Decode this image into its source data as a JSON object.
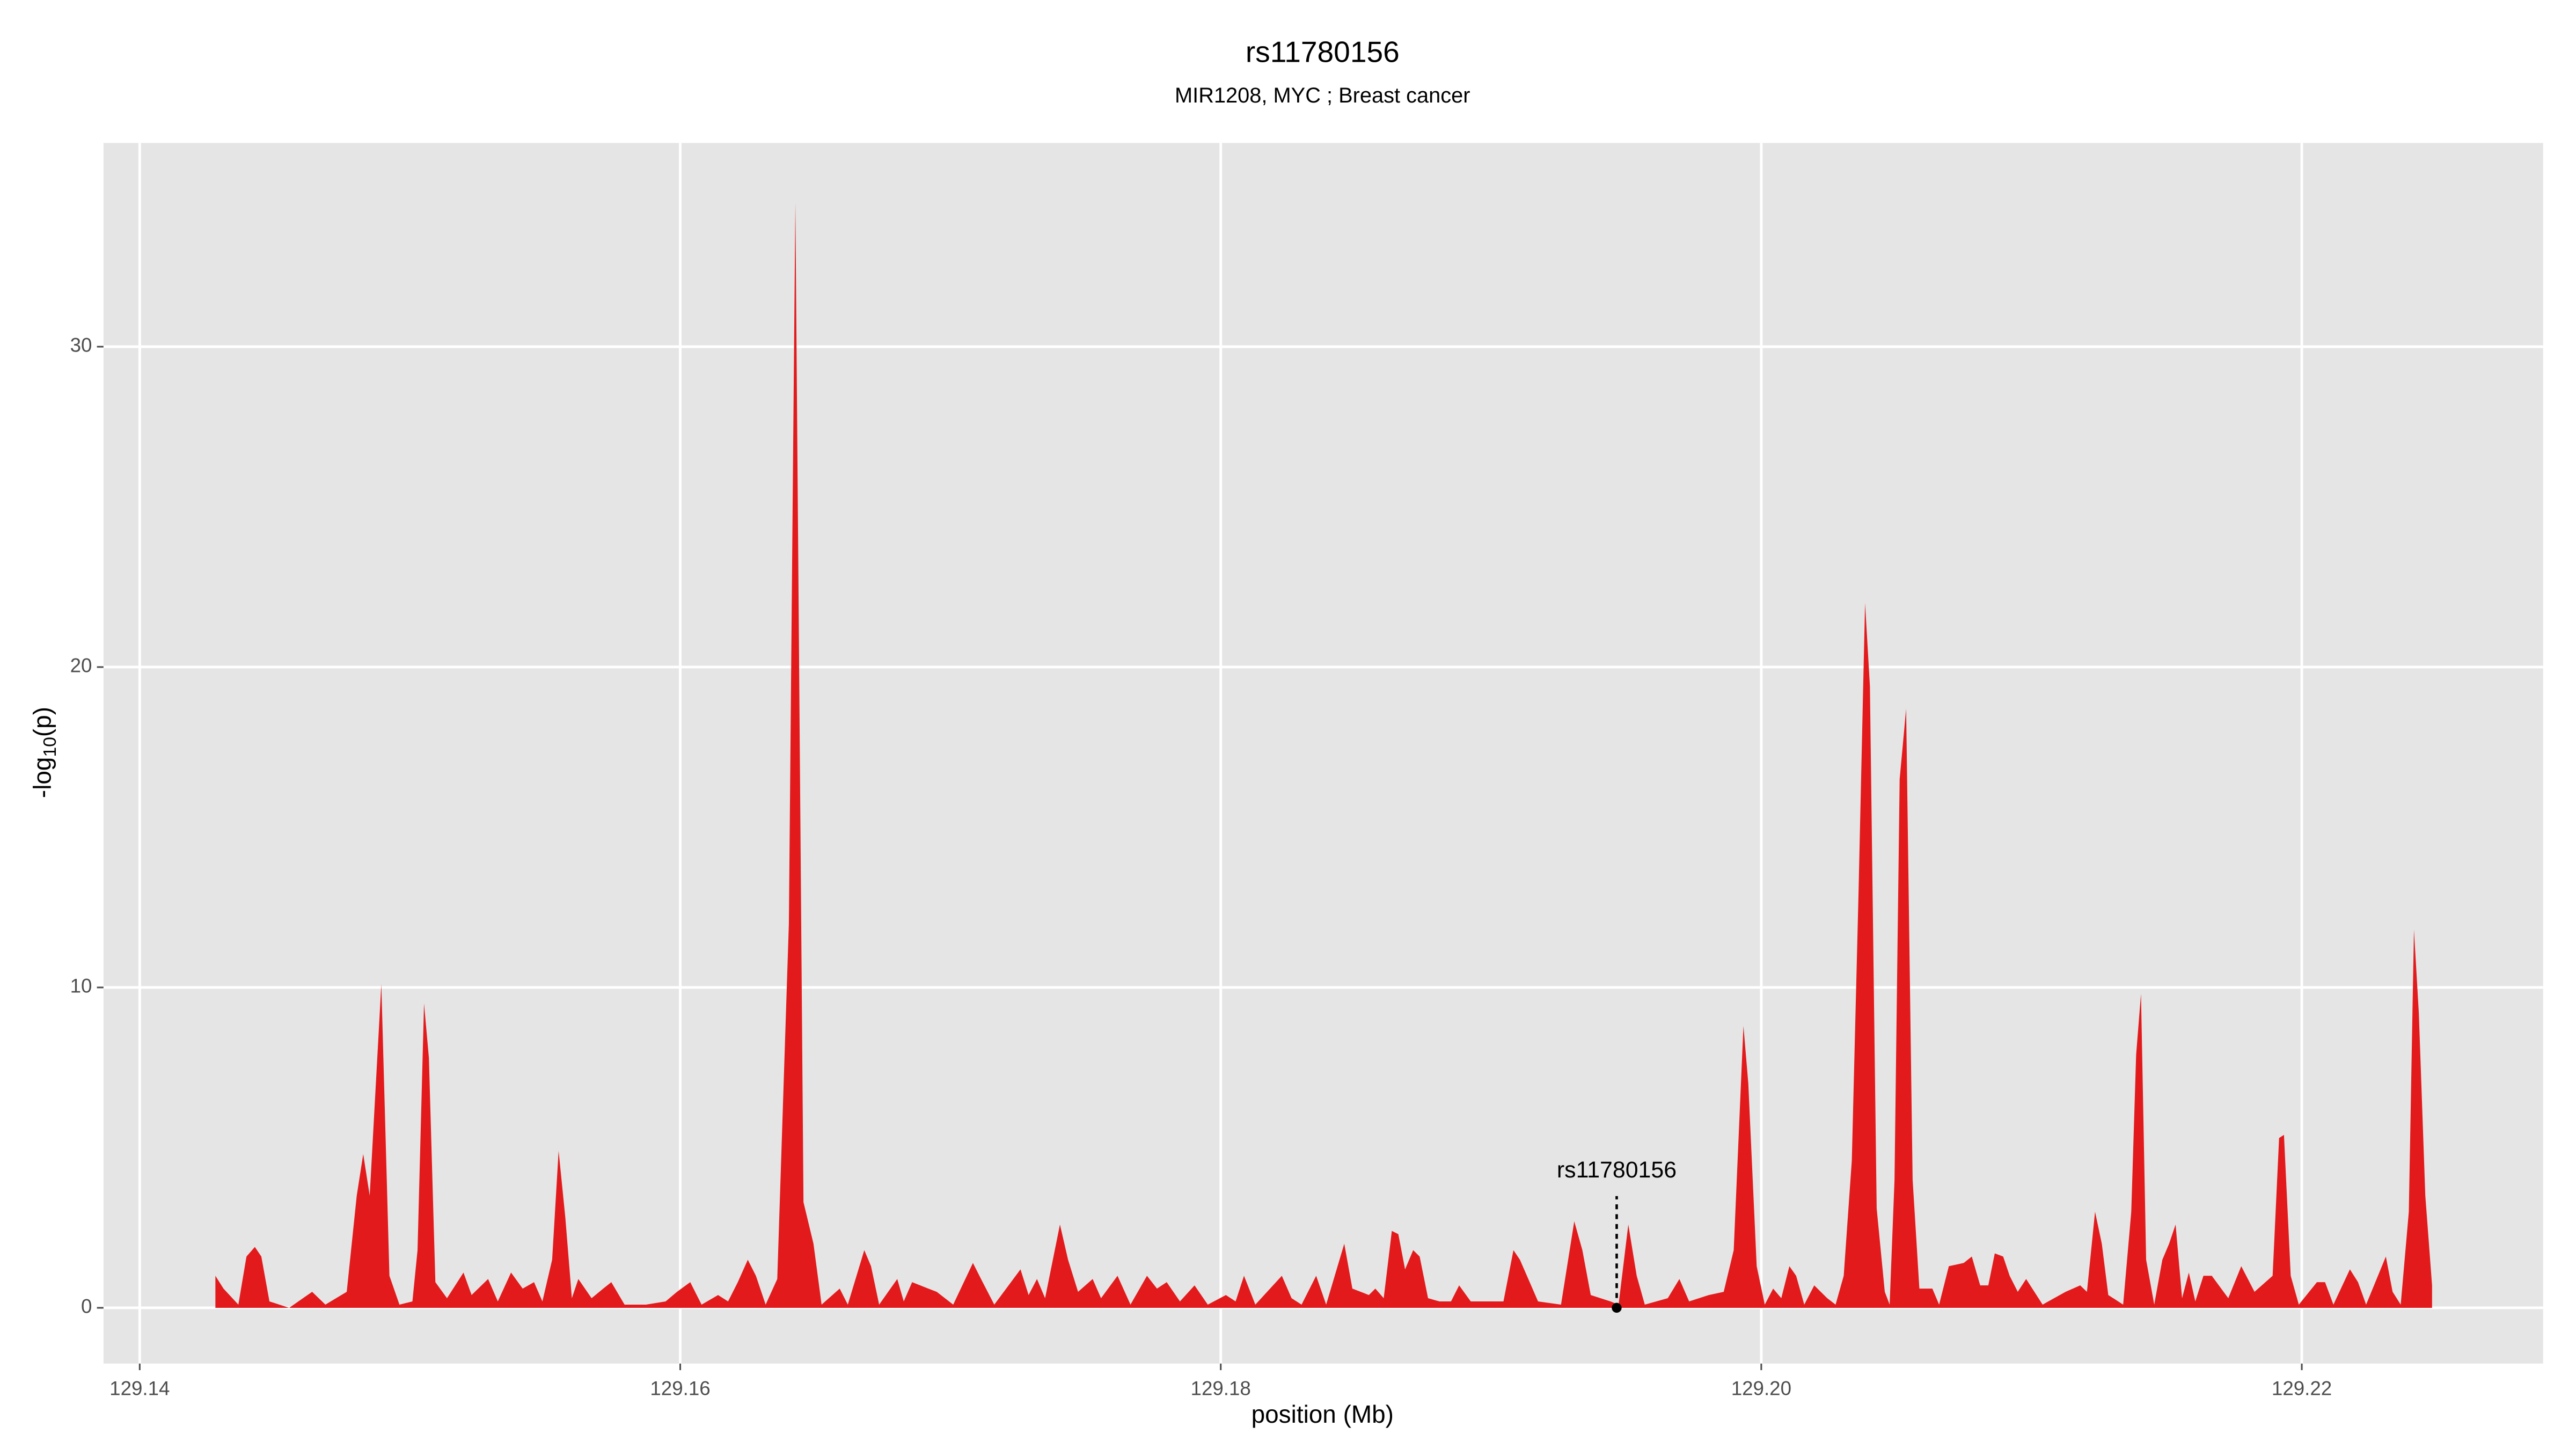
{
  "chart_data": {
    "type": "area",
    "title": "rs11780156",
    "subtitle": "MIR1208, MYC ; Breast cancer",
    "xlabel": "position (Mb)",
    "ylabel_parts": [
      "-log",
      "10",
      "(p)"
    ],
    "xlim": [
      129.13866,
      129.22893
    ],
    "ylim": [
      -1.74,
      36.36
    ],
    "xticks": [
      129.14,
      129.16,
      129.18,
      {
        "value": 129.2,
        "label": "129.20"
      },
      129.22
    ],
    "yticks": [
      0,
      10,
      20,
      30
    ],
    "grid": true,
    "annotation": {
      "text": "rs11780156",
      "x": 129.19465,
      "y": 0
    },
    "x": [
      129.1428,
      129.1431,
      129.14365,
      129.14395,
      129.14426,
      129.1445,
      129.1448,
      129.14553,
      129.14638,
      129.14687,
      129.14766,
      129.14803,
      129.14827,
      129.14851,
      129.14894,
      129.14924,
      129.14961,
      129.15009,
      129.15028,
      129.15052,
      129.1507,
      129.15094,
      129.15137,
      129.15198,
      129.15228,
      129.15289,
      129.15325,
      129.15374,
      129.15417,
      129.15459,
      129.1549,
      129.15526,
      129.1555,
      129.15575,
      129.15599,
      129.15623,
      129.15672,
      129.15715,
      129.15745,
      129.15794,
      129.15873,
      129.15946,
      129.15988,
      129.16037,
      129.16079,
      129.1614,
      129.16177,
      129.16213,
      129.1625,
      129.1628,
      129.16316,
      129.16359,
      129.16402,
      129.16426,
      129.16456,
      129.16493,
      129.16523,
      129.1659,
      129.1662,
      129.16681,
      129.16706,
      129.16736,
      129.16803,
      129.16827,
      129.16858,
      129.16918,
      129.16949,
      129.1701,
      129.17083,
      129.17119,
      129.17162,
      129.17259,
      129.17289,
      129.1732,
      129.1735,
      129.17405,
      129.17435,
      129.17472,
      129.17526,
      129.17557,
      129.17618,
      129.17666,
      129.17727,
      129.17764,
      129.178,
      129.17849,
      129.17903,
      129.17952,
      129.18019,
      129.18055,
      129.18086,
      129.18128,
      129.18226,
      129.18262,
      129.18299,
      129.18353,
      129.1839,
      129.18457,
      129.18487,
      129.18548,
      129.18572,
      129.18603,
      129.18633,
      129.18657,
      129.18682,
      129.18712,
      129.18736,
      129.18767,
      129.18809,
      129.18852,
      129.18882,
      129.18925,
      129.19016,
      129.19046,
      129.19083,
      129.19107,
      129.19138,
      129.19174,
      129.19259,
      129.19308,
      129.19338,
      129.19369,
      129.19442,
      129.19472,
      129.19508,
      129.19539,
      129.19569,
      129.19654,
      129.19697,
      129.19733,
      129.19806,
      129.19861,
      129.19898,
      129.19934,
      129.19952,
      129.19983,
      129.20013,
      129.20044,
      129.20074,
      129.20104,
      129.20129,
      129.20159,
      129.20196,
      129.20244,
      129.20275,
      129.20305,
      129.20335,
      129.2036,
      129.20384,
      129.20402,
      129.20427,
      129.20457,
      129.20475,
      129.20493,
      129.20512,
      129.20536,
      129.2056,
      129.20585,
      129.20633,
      129.20658,
      129.20694,
      129.20749,
      129.20779,
      129.2081,
      129.2084,
      129.20864,
      129.20895,
      129.20919,
      129.20949,
      129.2098,
      129.21041,
      129.21126,
      129.2118,
      129.21205,
      129.21235,
      129.2126,
      129.21284,
      129.21339,
      129.21369,
      129.21387,
      129.21405,
      129.21424,
      129.21454,
      129.21484,
      129.21509,
      129.21533,
      129.21557,
      129.21582,
      129.21606,
      129.21636,
      129.21667,
      129.21728,
      129.21776,
      129.21825,
      129.21892,
      129.21916,
      129.21934,
      129.21959,
      129.21989,
      129.22056,
      129.22086,
      129.22117,
      129.22178,
      129.22208,
      129.22238,
      129.22311,
      129.22336,
      129.22366,
      129.22396,
      129.22415,
      129.22433,
      129.22457,
      129.22482
    ],
    "series": [
      {
        "color": "#e31a1c",
        "values": [
          1.0,
          0.6,
          0.1,
          1.6,
          1.9,
          1.6,
          0.2,
          0,
          0.5,
          0.1,
          0.5,
          3.5,
          4.8,
          3.5,
          10.1,
          1.0,
          0.1,
          0.2,
          1.8,
          9.5,
          7.8,
          0.8,
          0.3,
          1.1,
          0.4,
          0.9,
          0.2,
          1.1,
          0.6,
          0.8,
          0.2,
          1.5,
          4.9,
          2.8,
          0.3,
          0.9,
          0.3,
          0.6,
          0.8,
          0.1,
          0.1,
          0.2,
          0.5,
          0.8,
          0.1,
          0.4,
          0.2,
          0.8,
          1.5,
          1.0,
          0.1,
          0.9,
          12,
          34.5,
          3.3,
          2.0,
          0.1,
          0.6,
          0.1,
          1.8,
          1.3,
          0.1,
          0.9,
          0.2,
          0.8,
          0.6,
          0.5,
          0.1,
          1.4,
          0.8,
          0.1,
          1.2,
          0.4,
          0.9,
          0.3,
          2.6,
          1.5,
          0.5,
          0.9,
          0.3,
          1.0,
          0.1,
          1.0,
          0.6,
          0.8,
          0.2,
          0.7,
          0.1,
          0.4,
          0.2,
          1.0,
          0.1,
          1.0,
          0.3,
          0.1,
          1.0,
          0.1,
          2.0,
          0.6,
          0.4,
          0.6,
          0.3,
          2.4,
          2.3,
          1.2,
          1.8,
          1.6,
          0.3,
          0.2,
          0.2,
          0.7,
          0.2,
          0.2,
          0.2,
          1.8,
          1.5,
          0.9,
          0.2,
          0.1,
          2.7,
          1.8,
          0.4,
          0.2,
          0.1,
          2.6,
          1.0,
          0.1,
          0.3,
          0.9,
          0.2,
          0.4,
          0.5,
          1.8,
          8.8,
          7.0,
          1.3,
          0.1,
          0.6,
          0.3,
          1.3,
          1.0,
          0.1,
          0.7,
          0.3,
          0.1,
          1.0,
          4.6,
          13,
          22,
          19.4,
          3.1,
          0.5,
          0.1,
          4.0,
          16.5,
          18.7,
          4.0,
          0.6,
          0.6,
          0.1,
          1.3,
          1.4,
          1.6,
          0.7,
          0.7,
          1.7,
          1.6,
          1.0,
          0.5,
          0.9,
          0.1,
          0.5,
          0.7,
          0.5,
          3.0,
          2.0,
          0.4,
          0.1,
          3.0,
          7.9,
          9.8,
          1.5,
          0.1,
          1.5,
          2.0,
          2.6,
          0.3,
          1.1,
          0.2,
          1.0,
          1.0,
          0.3,
          1.3,
          0.5,
          1.0,
          5.3,
          5.4,
          1.0,
          0.1,
          0.8,
          0.8,
          0.1,
          1.2,
          0.8,
          0.1,
          1.6,
          0.5,
          0.1,
          3.0,
          11.8,
          9.2,
          3.5,
          0.7
        ]
      }
    ]
  }
}
